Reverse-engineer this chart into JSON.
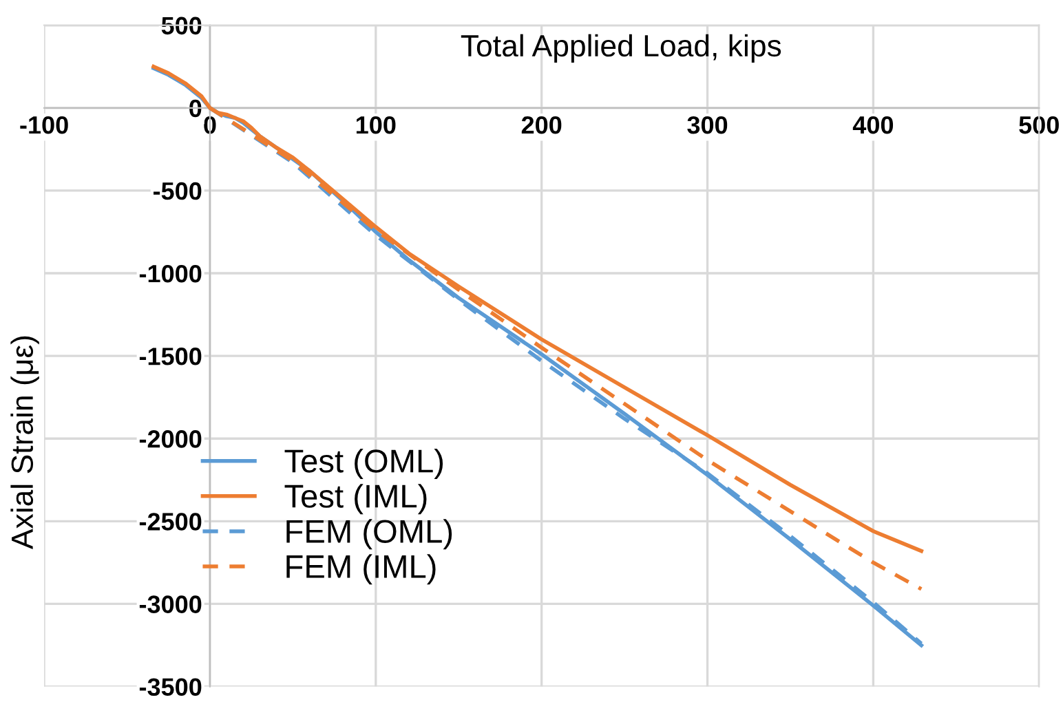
{
  "chart_data": {
    "type": "line",
    "xlabel": "Total Applied Load, kips",
    "ylabel": "Axial Strain (με)",
    "xlim": [
      -100,
      500
    ],
    "ylim": [
      -3500,
      500
    ],
    "xticks": [
      -100,
      0,
      100,
      200,
      300,
      400,
      500
    ],
    "yticks": [
      -3500,
      -3000,
      -2500,
      -2000,
      -1500,
      -1000,
      -500,
      0,
      500
    ],
    "grid": true,
    "legend": "bottom left",
    "marker": "none",
    "series": [
      {
        "name": "Test (OML)",
        "color": "#5b9bd5",
        "line_style": "solid",
        "x": [
          -34,
          -25,
          -15,
          -5,
          0,
          5,
          10,
          15,
          20,
          25,
          30,
          40,
          50,
          60,
          80,
          100,
          120,
          150,
          200,
          250,
          300,
          350,
          400,
          429
        ],
        "values": [
          240,
          200,
          140,
          60,
          0,
          -30,
          -50,
          -60,
          -90,
          -130,
          -170,
          -240,
          -310,
          -380,
          -560,
          -750,
          -920,
          -1150,
          -1490,
          -1850,
          -2220,
          -2610,
          -3010,
          -3250
        ]
      },
      {
        "name": "Test (IML)",
        "color": "#ed7d31",
        "line_style": "solid",
        "x": [
          -34,
          -25,
          -15,
          -5,
          0,
          5,
          10,
          15,
          20,
          25,
          30,
          40,
          50,
          60,
          80,
          100,
          120,
          150,
          200,
          250,
          300,
          350,
          400,
          429
        ],
        "values": [
          250,
          210,
          150,
          70,
          0,
          -30,
          -40,
          -60,
          -80,
          -120,
          -170,
          -240,
          -300,
          -380,
          -550,
          -720,
          -880,
          -1080,
          -1400,
          -1690,
          -1980,
          -2280,
          -2560,
          -2680
        ]
      },
      {
        "name": "FEM (OML)",
        "color": "#5b9bd5",
        "line_style": "dashed",
        "x": [
          0,
          50,
          100,
          150,
          200,
          250,
          300,
          350,
          400,
          429
        ],
        "values": [
          0,
          -330,
          -770,
          -1160,
          -1530,
          -1880,
          -2210,
          -2590,
          -2990,
          -3240
        ]
      },
      {
        "name": "FEM (IML)",
        "color": "#ed7d31",
        "line_style": "dashed",
        "x": [
          0,
          50,
          100,
          150,
          200,
          250,
          300,
          350,
          400,
          429
        ],
        "values": [
          0,
          -320,
          -740,
          -1100,
          -1450,
          -1790,
          -2130,
          -2440,
          -2750,
          -2910
        ]
      }
    ]
  }
}
